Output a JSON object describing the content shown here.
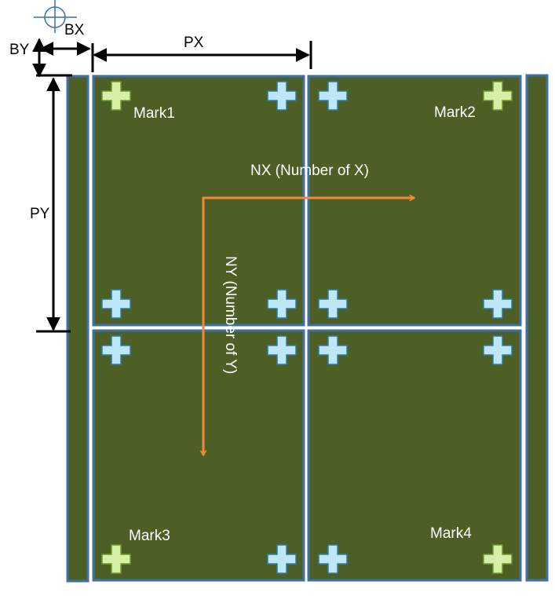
{
  "dimensions": {
    "by": "BY",
    "bx": "BX",
    "px": "PX",
    "py": "PY"
  },
  "marks": {
    "mark1": "Mark1",
    "mark2": "Mark2",
    "mark3": "Mark3",
    "mark4": "Mark4"
  },
  "axes": {
    "nx": "NX (Number of X)",
    "ny": "NY (Number of Y)"
  },
  "colors": {
    "panel_fill": "#4e5f26",
    "panel_stroke": "#3f6fa6",
    "origin_marker": "#3f6fa6",
    "alignment_cross": "#bde7f5",
    "alignment_cross_stroke": "#2f78a8",
    "mark_cross": "#d6f0a8",
    "mark_cross_stroke": "#6a9a2a",
    "arrow": "#f08a33",
    "dimension": "#000000",
    "label_on_panel": "#ffffff"
  },
  "icons": {
    "origin": "crosshair-circle-icon",
    "alignment": "plus-cross-icon",
    "fiducial": "plus-cross-icon"
  }
}
